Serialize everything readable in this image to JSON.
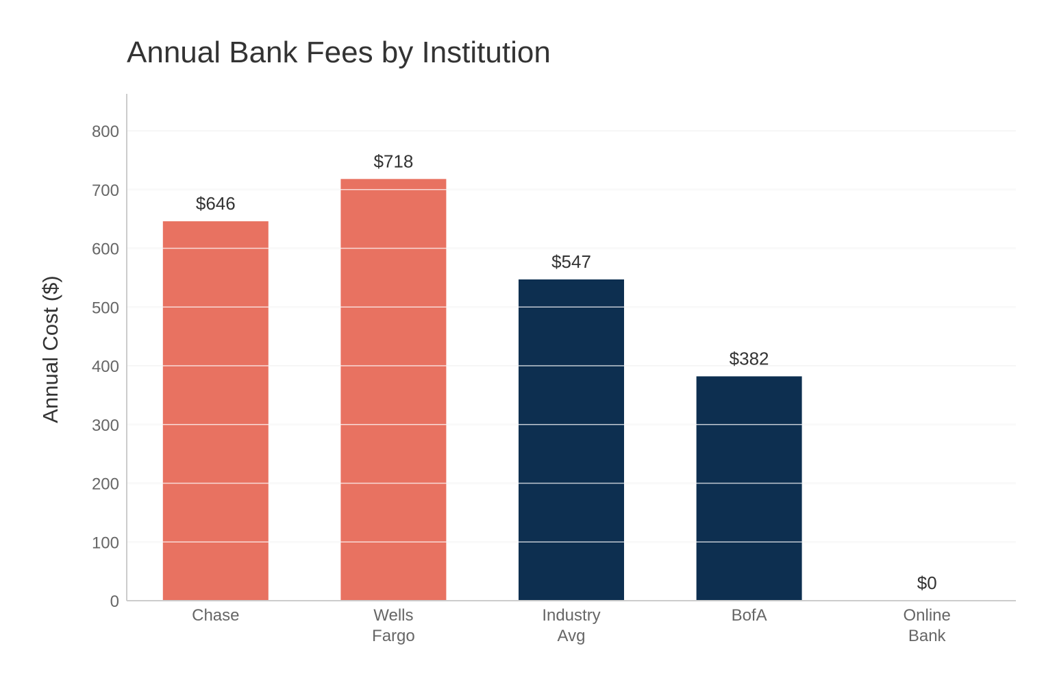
{
  "chart_data": {
    "type": "bar",
    "title": "Annual Bank Fees by Institution",
    "xlabel": "",
    "ylabel": "Annual Cost ($)",
    "ylim": [
      0,
      860
    ],
    "yticks": [
      0,
      100,
      200,
      300,
      400,
      500,
      600,
      700,
      800
    ],
    "grid": true,
    "categories": [
      "Chase",
      "Wells Fargo",
      "Industry Avg",
      "BofA",
      "Online Bank"
    ],
    "category_lines": [
      [
        "Chase"
      ],
      [
        "Wells",
        "Fargo"
      ],
      [
        "Industry",
        "Avg"
      ],
      [
        "BofA"
      ],
      [
        "Online",
        "Bank"
      ]
    ],
    "values": [
      646,
      718,
      547,
      382,
      0
    ],
    "value_labels": [
      "$646",
      "$718",
      "$547",
      "$382",
      "$0"
    ],
    "colors": [
      "#e87261",
      "#e87261",
      "#0d2f50",
      "#0d2f50",
      "#0d2f50"
    ]
  },
  "colors": {
    "accent_high": "#e87261",
    "accent_low": "#0d2f50",
    "grid": "#ebebeb",
    "axis": "#cccccc"
  }
}
